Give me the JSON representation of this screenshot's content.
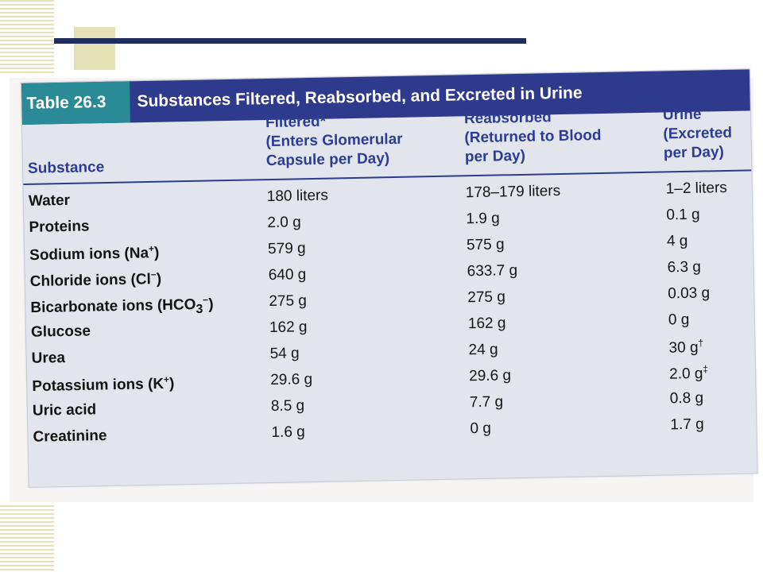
{
  "slide": {
    "colors": {
      "accent_navy": "#1f2d5e",
      "accent_beige": "#e4e0b6"
    }
  },
  "table": {
    "number": "Table 26.3",
    "title": "Substances Filtered, Reabsorbed, and Excreted in Urine",
    "colors": {
      "number_bg": "#2a8a96",
      "title_bg": "#2e3a8c",
      "header_text": "#2b3e93",
      "body_bg": "#e2e5ec"
    },
    "headers": {
      "substance": "Substance",
      "filtered": [
        "Filtered*",
        "(Enters Glomerular",
        "Capsule per Day)"
      ],
      "reabsorbed": [
        "Reabsorbed",
        "(Returned to Blood",
        "per Day)"
      ],
      "urine": [
        "Urine",
        "(Excreted",
        "per Day)"
      ]
    },
    "rows": [
      {
        "substance": "Water",
        "filtered": "180 liters",
        "reabsorbed": "178–179 liters",
        "urine": "1–2 liters"
      },
      {
        "substance": "Proteins",
        "filtered": "2.0 g",
        "reabsorbed": "1.9 g",
        "urine": "0.1 g"
      },
      {
        "substance": "Sodium ions (Na",
        "substance_sup": "+",
        "substance_tail": ")",
        "filtered": "579 g",
        "reabsorbed": "575 g",
        "urine": "4 g"
      },
      {
        "substance": "Chloride ions (Cl",
        "substance_sup": "−",
        "substance_tail": ")",
        "filtered": "640 g",
        "reabsorbed": "633.7 g",
        "urine": "6.3 g"
      },
      {
        "substance": "Bicarbonate ions (HCO",
        "substance_sub": "3",
        "substance_sup": "−",
        "substance_tail": ")",
        "filtered": "275 g",
        "reabsorbed": "275 g",
        "urine": "0.03 g"
      },
      {
        "substance": "Glucose",
        "filtered": "162 g",
        "reabsorbed": "162 g",
        "urine": "0 g"
      },
      {
        "substance": "Urea",
        "filtered": "54 g",
        "reabsorbed": "24 g",
        "urine": "30 g",
        "urine_sup": "†"
      },
      {
        "substance": "Potassium ions (K",
        "substance_sup": "+",
        "substance_tail": ")",
        "filtered": "29.6 g",
        "reabsorbed": "29.6 g",
        "urine": "2.0 g",
        "urine_sup": "‡"
      },
      {
        "substance": "Uric acid",
        "filtered": "8.5 g",
        "reabsorbed": "7.7 g",
        "urine": "0.8 g"
      },
      {
        "substance": "Creatinine",
        "filtered": "1.6 g",
        "reabsorbed": "0 g",
        "urine": "1.7 g"
      }
    ]
  }
}
